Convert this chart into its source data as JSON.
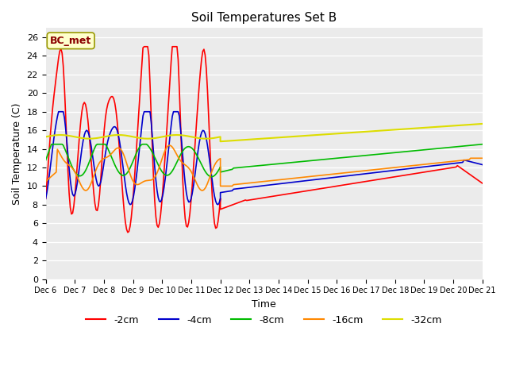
{
  "title": "Soil Temperatures Set B",
  "xlabel": "Time",
  "ylabel": "Soil Temperature (C)",
  "annotation": "BC_met",
  "ylim": [
    0,
    27
  ],
  "yticks": [
    0,
    2,
    4,
    6,
    8,
    10,
    12,
    14,
    16,
    18,
    20,
    22,
    24,
    26
  ],
  "colors": {
    "-2cm": "#ff0000",
    "-4cm": "#0000cc",
    "-8cm": "#00bb00",
    "-16cm": "#ff8800",
    "-32cm": "#dddd00"
  },
  "legend_labels": [
    "-2cm",
    "-4cm",
    "-8cm",
    "-16cm",
    "-32cm"
  ],
  "bg_color": "#e8e8e8",
  "plot_bg": "#f0f0f0"
}
